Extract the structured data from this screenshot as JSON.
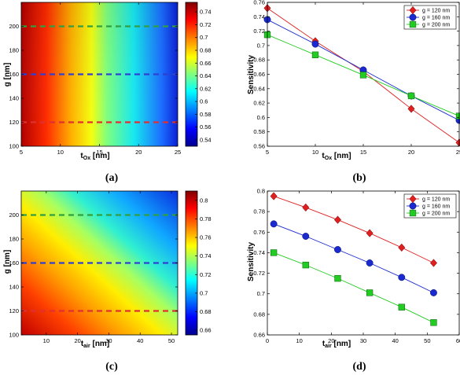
{
  "panels": [
    {
      "id": "a",
      "panel_label": "(a)",
      "xlabel_main": "t",
      "xlabel_sub": "Ox",
      "xlabel_unit": " [nm]",
      "ylabel": "g [nm]"
    },
    {
      "id": "b",
      "panel_label": "(b)",
      "xlabel_main": "t",
      "xlabel_sub": "Ox",
      "xlabel_unit": " [nm]",
      "ylabel": "Sensitivity"
    },
    {
      "id": "c",
      "panel_label": "(c)",
      "xlabel_main": "t",
      "xlabel_sub": "air",
      "xlabel_unit": " [nm]",
      "ylabel": "g [nm]"
    },
    {
      "id": "d",
      "panel_label": "(d)",
      "xlabel_main": "t",
      "xlabel_sub": "air",
      "xlabel_unit": " [nm]",
      "ylabel": "Sensitivity"
    }
  ],
  "chart_data": [
    {
      "panel": "a",
      "type": "heatmap",
      "colormap": "jet",
      "xlim": [
        5,
        25
      ],
      "ylim": [
        100,
        220
      ],
      "xticks": [
        5,
        10,
        15,
        20,
        25
      ],
      "yticks": [
        100,
        120,
        140,
        160,
        180,
        200
      ],
      "colorbar": {
        "min": 0.53,
        "max": 0.755,
        "ticks": [
          0.54,
          0.56,
          0.58,
          0.6,
          0.62,
          0.64,
          0.66,
          0.68,
          0.7,
          0.72,
          0.74
        ]
      },
      "reference_lines": [
        {
          "g": 120,
          "color": "#e03030"
        },
        {
          "g": 160,
          "color": "#3040d0"
        },
        {
          "g": 200,
          "color": "#30a040"
        }
      ]
    },
    {
      "panel": "b",
      "type": "line",
      "xlim": [
        5,
        25
      ],
      "ylim": [
        0.56,
        0.76
      ],
      "xticks": [
        5,
        10,
        15,
        20,
        25
      ],
      "yticks": [
        0.56,
        0.58,
        0.6,
        0.62,
        0.64,
        0.66,
        0.68,
        0.7,
        0.72,
        0.74,
        0.76
      ],
      "grid": false,
      "legend_position": "top-right",
      "x": [
        5,
        10,
        15,
        20,
        25
      ],
      "series": [
        {
          "name": "g = 120 nm",
          "marker": "diamond",
          "color": "#e02020",
          "values": [
            0.752,
            0.706,
            0.664,
            0.612,
            0.565
          ]
        },
        {
          "name": "g = 160 nm",
          "marker": "circle",
          "color": "#1a2ad0",
          "values": [
            0.736,
            0.702,
            0.666,
            0.63,
            0.596
          ]
        },
        {
          "name": "g = 200 nm",
          "marker": "square",
          "color": "#22cc22",
          "values": [
            0.715,
            0.687,
            0.659,
            0.63,
            0.602
          ]
        }
      ]
    },
    {
      "panel": "c",
      "type": "heatmap",
      "colormap": "jet",
      "xlim": [
        2,
        52
      ],
      "ylim": [
        100,
        220
      ],
      "xticks": [
        10,
        20,
        30,
        40,
        50
      ],
      "yticks": [
        100,
        120,
        140,
        160,
        180,
        200
      ],
      "colorbar": {
        "min": 0.655,
        "max": 0.81,
        "ticks": [
          0.66,
          0.68,
          0.7,
          0.72,
          0.74,
          0.76,
          0.78,
          0.8
        ]
      },
      "reference_lines": [
        {
          "g": 120,
          "color": "#e03030"
        },
        {
          "g": 160,
          "color": "#3040d0"
        },
        {
          "g": 200,
          "color": "#30a040"
        }
      ]
    },
    {
      "panel": "d",
      "type": "line",
      "xlim": [
        0,
        60
      ],
      "ylim": [
        0.66,
        0.8
      ],
      "xticks": [
        0,
        10,
        20,
        30,
        40,
        50,
        60
      ],
      "yticks": [
        0.66,
        0.68,
        0.7,
        0.72,
        0.74,
        0.76,
        0.78,
        0.8
      ],
      "grid": false,
      "legend_position": "top-right",
      "x": [
        2,
        12,
        22,
        32,
        42,
        52
      ],
      "series": [
        {
          "name": "g = 120 nm",
          "marker": "diamond",
          "color": "#e02020",
          "values": [
            0.795,
            0.784,
            0.772,
            0.759,
            0.745,
            0.73
          ]
        },
        {
          "name": "g = 160 nm",
          "marker": "circle",
          "color": "#1a2ad0",
          "values": [
            0.768,
            0.756,
            0.743,
            0.73,
            0.716,
            0.701
          ]
        },
        {
          "name": "g = 200 nm",
          "marker": "square",
          "color": "#22cc22",
          "values": [
            0.74,
            0.728,
            0.715,
            0.701,
            0.687,
            0.672
          ]
        }
      ]
    }
  ]
}
